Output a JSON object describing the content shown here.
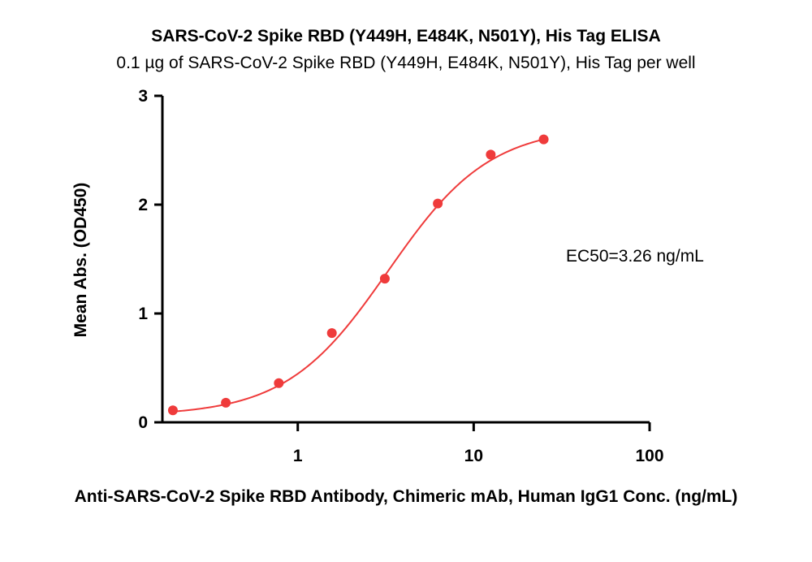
{
  "chart_data": {
    "type": "scatter",
    "title": "SARS-CoV-2 Spike RBD (Y449H, E484K, N501Y), His Tag ELISA",
    "subtitle": "0.1 µg of SARS-CoV-2 Spike RBD (Y449H, E484K, N501Y), His Tag per well",
    "xlabel": "Anti-SARS-CoV-2 Spike RBD Antibody, Chimeric mAb, Human IgG1 Conc. (ng/mL)",
    "ylabel": "Mean Abs. (OD450)",
    "x_scale": "log",
    "xlim": [
      0.17,
      100
    ],
    "ylim": [
      0,
      3
    ],
    "x_ticks": [
      "1",
      "10",
      "100"
    ],
    "y_ticks": [
      "0",
      "1",
      "2",
      "3"
    ],
    "series": [
      {
        "color": "#ef3b3b",
        "x": [
          0.195,
          0.39,
          0.78,
          1.5625,
          3.125,
          6.25,
          12.5,
          25
        ],
        "y": [
          0.11,
          0.18,
          0.36,
          0.82,
          1.32,
          2.01,
          2.46,
          2.6
        ]
      }
    ],
    "fit": {
      "type": "4PL",
      "color": "#ef3b3b",
      "bottom": 0.06,
      "top": 2.72,
      "ec50": 3.26,
      "hill": 1.5
    },
    "annotation": "EC50=3.26 ng/mL",
    "grid": false
  }
}
